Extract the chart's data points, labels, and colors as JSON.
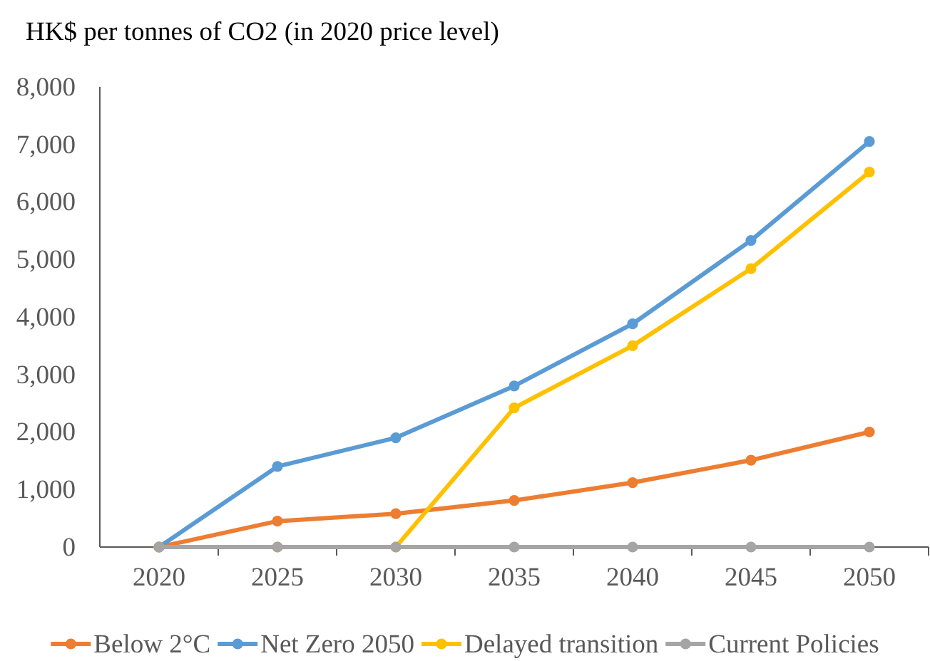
{
  "chart_data": {
    "type": "line",
    "title": "HK$ per tonnes of CO2 (in 2020 price level)",
    "categories": [
      "2020",
      "2025",
      "2030",
      "2035",
      "2040",
      "2045",
      "2050"
    ],
    "series": [
      {
        "name": "Below 2°C",
        "color": "#ed7d31",
        "values": [
          0,
          450,
          580,
          810,
          1120,
          1510,
          2000
        ]
      },
      {
        "name": "Net Zero 2050",
        "color": "#5b9bd5",
        "values": [
          0,
          1400,
          1900,
          2800,
          3880,
          5330,
          7050
        ]
      },
      {
        "name": "Delayed transition",
        "color": "#ffc000",
        "values": [
          0,
          0,
          0,
          2420,
          3500,
          4840,
          6520
        ]
      },
      {
        "name": "Current Policies",
        "color": "#a5a5a5",
        "values": [
          0,
          0,
          0,
          0,
          0,
          0,
          0
        ]
      }
    ],
    "ylim": [
      0,
      8000
    ],
    "yticks": [
      0,
      {
        "value": 1000,
        "label": "1,000"
      },
      {
        "value": 2000,
        "label": "2,000"
      },
      {
        "value": 3000,
        "label": "3,000"
      },
      {
        "value": 4000,
        "label": "4,000"
      },
      {
        "value": 5000,
        "label": "5,000"
      },
      {
        "value": 6000,
        "label": "6,000"
      },
      {
        "value": 7000,
        "label": "7,000"
      },
      {
        "value": 8000,
        "label": "8,000"
      }
    ],
    "legend": "bottom",
    "marker": "circle",
    "line_style": "solid"
  }
}
